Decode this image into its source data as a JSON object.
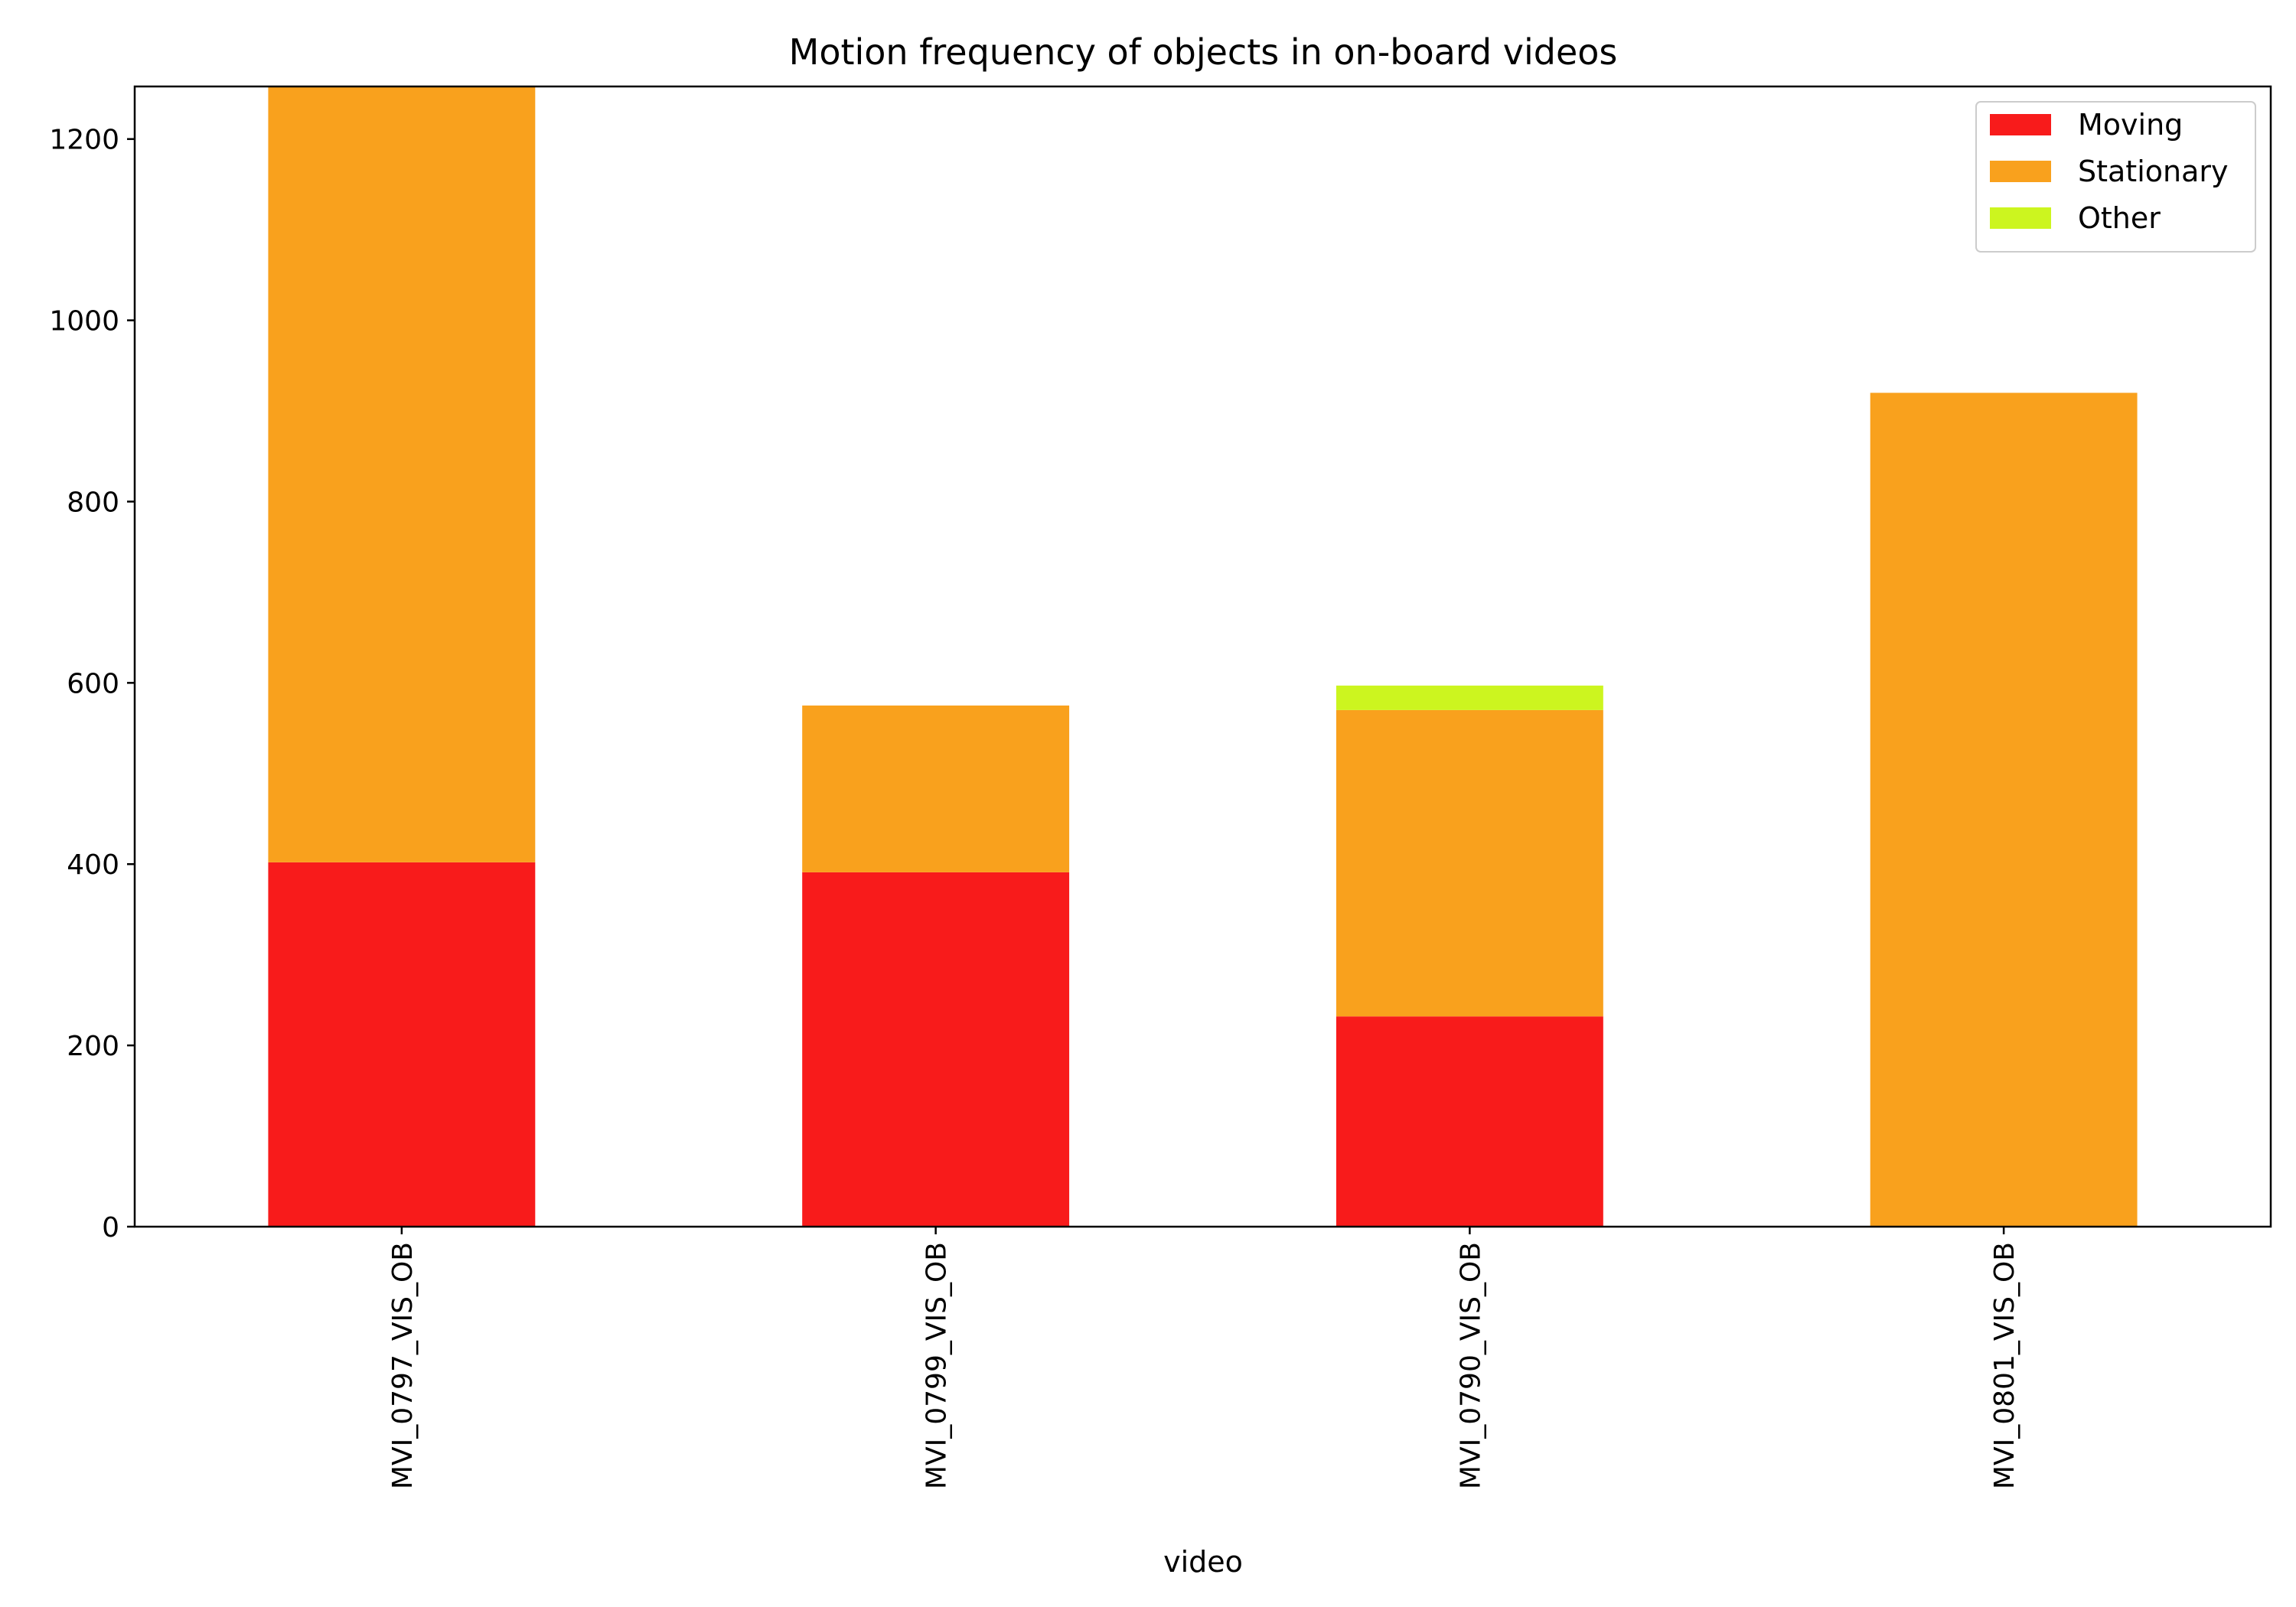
{
  "chart_data": {
    "type": "bar",
    "stacked": true,
    "title": "Motion frequency of objects in on-board videos",
    "xlabel": "video",
    "ylabel": "",
    "ylim": [
      0,
      1258
    ],
    "yticks": [
      0,
      200,
      400,
      600,
      800,
      1000,
      1200
    ],
    "categories": [
      "MVI_0797_VIS_OB",
      "MVI_0799_VIS_OB",
      "MVI_0790_VIS_OB",
      "MVI_0801_VIS_OB"
    ],
    "series": [
      {
        "name": "Moving",
        "color": "#f81b1b",
        "values": [
          402,
          391,
          232,
          0
        ]
      },
      {
        "name": "Stationary",
        "color": "#f9a11d",
        "values": [
          856,
          184,
          338,
          920
        ]
      },
      {
        "name": "Other",
        "color": "#ccf51f",
        "values": [
          0,
          0,
          27,
          0
        ]
      }
    ],
    "legend_position": "top-right",
    "grid": false
  }
}
